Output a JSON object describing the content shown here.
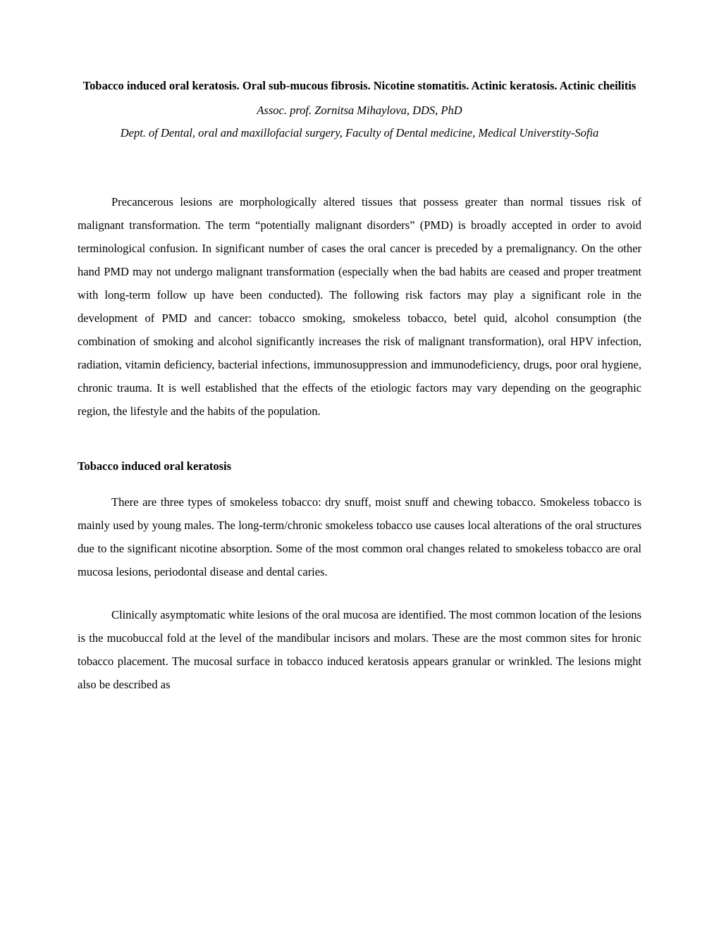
{
  "document": {
    "background_color": "#ffffff",
    "text_color": "#000000",
    "font_family": "Times New Roman",
    "body_fontsize_pt": 12,
    "line_spacing": 2.0
  },
  "header": {
    "title": "Tobacco induced oral keratosis. Oral sub-mucous fibrosis. Nicotine stomatitis. Actinic keratosis. Actinic cheilitis",
    "author": "Assoc. prof. Zornitsa Mihaylova, DDS, PhD",
    "affiliation": "Dept. of Dental, oral and maxillofacial surgery, Faculty of Dental medicine, Medical Universtity-Sofia"
  },
  "body": {
    "intro_paragraph": "Precancerous lesions are morphologically altered tissues that possess greater than normal tissues risk of malignant transformation. The term “potentially malignant disorders” (PMD) is broadly accepted in order to avoid terminological confusion. In significant number of cases the oral cancer is preceded by a premalignancy. On the other hand PMD may not undergo malignant transformation (especially when the bad habits are ceased and proper treatment with long-term follow up have been conducted). The following risk factors may play a significant role in the development of PMD and cancer: tobacco smoking, smokeless tobacco, betel quid, alcohol consumption (the combination of smoking and alcohol significantly increases the risk of malignant transformation), oral HPV infection, radiation, vitamin deficiency, bacterial infections, immunosuppression and immunodeficiency, drugs, poor oral hygiene, chronic trauma. It is well established that the effects of the etiologic factors may vary depending on the geographic region, the lifestyle and the habits of the population.",
    "section1": {
      "heading": "Tobacco induced oral keratosis",
      "para1": "There are three types of smokeless tobacco: dry snuff, moist snuff and chewing tobacco. Smokeless tobacco is mainly used by young males. The long-term/chronic smokeless tobacco use causes local alterations of the oral structures due to the significant nicotine absorption. Some of the most common oral changes related to smokeless tobacco are oral mucosa lesions, periodontal disease and dental caries.",
      "para2": "Clinically asymptomatic white lesions of the oral mucosa are identified. The most common location of the lesions is the mucobuccal fold at the level of the mandibular incisors and molars. These are the most common sites for hronic tobacco placement. The mucosal surface in tobacco induced keratosis appears granular or wrinkled. The lesions might also be described as"
    }
  }
}
